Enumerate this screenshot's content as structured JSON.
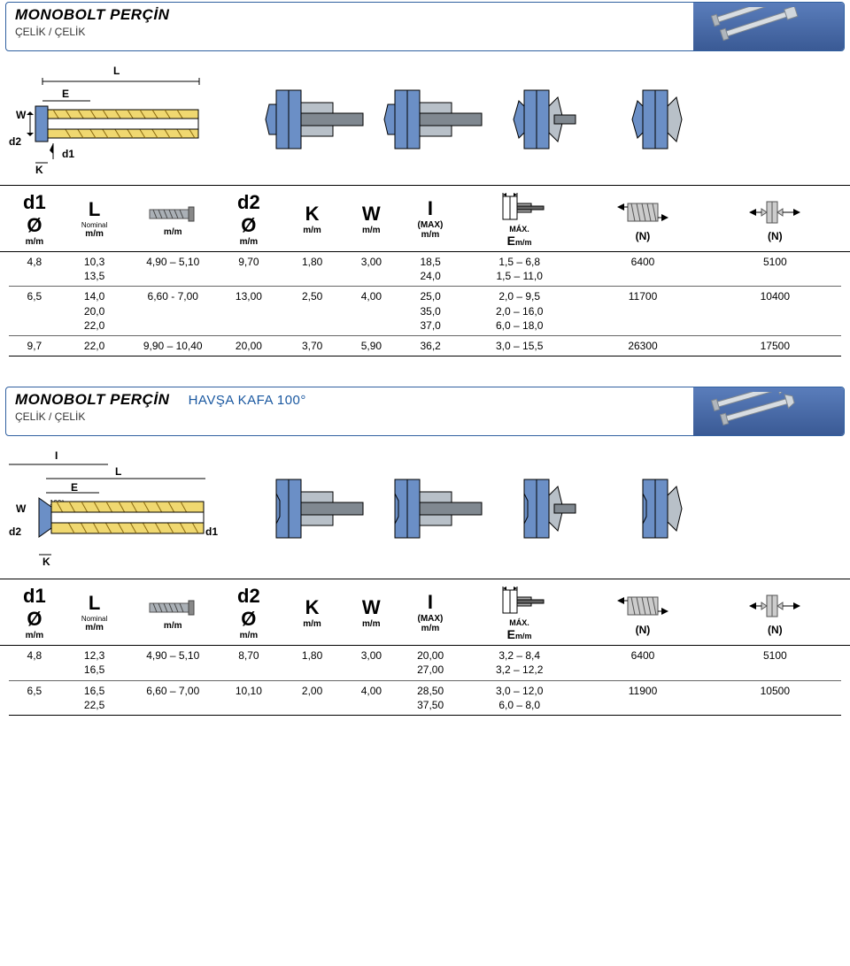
{
  "section1": {
    "title": "MONOBOLT PERÇİN",
    "subtitle": "ÇELİK / ÇELİK",
    "header": {
      "d1_sym": "d1",
      "d1_dia": "Ø",
      "d1_unit": "m/m",
      "L_sym": "L",
      "L_nominal": "Nominal",
      "L_unit": "m/m",
      "tol_unit": "m/m",
      "d2_sym": "d2",
      "d2_dia": "Ø",
      "d2_unit": "m/m",
      "K_sym": "K",
      "K_unit": "m/m",
      "W_sym": "W",
      "W_unit": "m/m",
      "I_sym": "I",
      "I_max": "(MAX)",
      "I_unit": "m/m",
      "E_max": "MÁX.",
      "E_sym": "E",
      "E_unit": "m/m",
      "N1": "(N)",
      "N2": "(N)"
    },
    "rows": [
      {
        "d1": "4,8",
        "L": [
          "10,3",
          "13,5"
        ],
        "tol": "4,90 – 5,10",
        "d2": "9,70",
        "K": "1,80",
        "W": "3,00",
        "I": [
          "18,5",
          "24,0"
        ],
        "E": [
          "1,5 – 6,8",
          "1,5 – 11,0"
        ],
        "N1": "6400",
        "N2": "5100"
      },
      {
        "d1": "6,5",
        "L": [
          "14,0",
          "20,0",
          "22,0"
        ],
        "tol": "6,60 - 7,00",
        "d2": "13,00",
        "K": "2,50",
        "W": "4,00",
        "I": [
          "25,0",
          "35,0",
          "37,0"
        ],
        "E": [
          "2,0 – 9,5",
          "2,0 – 16,0",
          "6,0 – 18,0"
        ],
        "N1": "11700",
        "N2": "10400"
      },
      {
        "d1": "9,7",
        "L": [
          "22,0"
        ],
        "tol": "9,90 – 10,40",
        "d2": "20,00",
        "K": "3,70",
        "W": "5,90",
        "I": [
          "36,2"
        ],
        "E": [
          "3,0 – 15,5"
        ],
        "N1": "26300",
        "N2": "17500"
      }
    ]
  },
  "section2": {
    "title": "MONOBOLT PERÇİN",
    "title_extra": "HAVŞA KAFA 100°",
    "subtitle": "ÇELİK / ÇELİK",
    "header": {
      "d1_sym": "d1",
      "d1_dia": "Ø",
      "d1_unit": "m/m",
      "L_sym": "L",
      "L_nominal": "Nominal",
      "L_unit": "m/m",
      "tol_unit": "m/m",
      "d2_sym": "d2",
      "d2_dia": "Ø",
      "d2_unit": "m/m",
      "K_sym": "K",
      "K_unit": "m/m",
      "W_sym": "W",
      "W_unit": "m/m",
      "I_sym": "I",
      "I_max": "(MAX)",
      "I_unit": "m/m",
      "E_max": "MÁX.",
      "E_sym": "E",
      "E_unit": "m/m",
      "N1": "(N)",
      "N2": "(N)"
    },
    "rows": [
      {
        "d1": "4,8",
        "L": [
          "12,3",
          "16,5"
        ],
        "tol": "4,90 – 5,10",
        "d2": "8,70",
        "K": "1,80",
        "W": "3,00",
        "I": [
          "20,00",
          "27,00"
        ],
        "E": [
          "3,2 – 8,4",
          "3,2 – 12,2"
        ],
        "N1": "6400",
        "N2": "5100"
      },
      {
        "d1": "6,5",
        "L": [
          "16,5",
          "22,5"
        ],
        "tol": "6,60 – 7,00",
        "d2": "10,10",
        "K": "2,00",
        "W": "4,00",
        "I": [
          "28,50",
          "37,50"
        ],
        "E": [
          "3,0 – 12,0",
          "6,0 – 8,0"
        ],
        "N1": "11900",
        "N2": "10500"
      }
    ]
  },
  "colors": {
    "blue": "#4a6ea8",
    "lightblue": "#9fb8d8",
    "grey": "#b8c0c8",
    "gold": "#f0a818",
    "darkgrey": "#707880"
  }
}
